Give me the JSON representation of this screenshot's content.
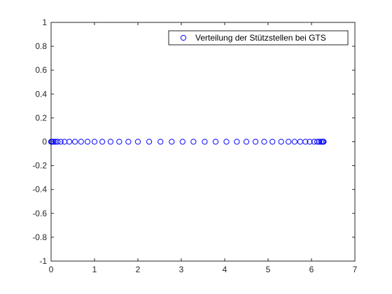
{
  "chart_data": {
    "type": "scatter",
    "title": "",
    "xlabel": "",
    "ylabel": "",
    "xlim": [
      0,
      7
    ],
    "ylim": [
      -1,
      1
    ],
    "xticks": [
      0,
      1,
      2,
      3,
      4,
      5,
      6,
      7
    ],
    "yticks": [
      -1,
      -0.8,
      -0.6,
      -0.4,
      -0.2,
      0,
      0.2,
      0.4,
      0.6,
      0.8,
      1
    ],
    "xtick_labels": [
      "0",
      "1",
      "2",
      "3",
      "4",
      "5",
      "6",
      "7"
    ],
    "ytick_labels": [
      "-1",
      "-0.8",
      "-0.6",
      "-0.4",
      "-0.2",
      "0",
      "0.2",
      "0.4",
      "0.6",
      "0.8",
      "1"
    ],
    "grid": false,
    "legend_position": "top-right",
    "marker": "circle-open",
    "series": [
      {
        "name": "Verteilung der Stützstellen bei GTS",
        "color": "#0000ff",
        "x": [
          0.0,
          0.01,
          0.03,
          0.06,
          0.1,
          0.15,
          0.22,
          0.31,
          0.42,
          0.55,
          0.69,
          0.84,
          1.0,
          1.18,
          1.37,
          1.57,
          1.78,
          2.0,
          2.26,
          2.52,
          2.78,
          3.03,
          3.28,
          3.54,
          3.79,
          4.04,
          4.28,
          4.5,
          4.71,
          4.91,
          5.1,
          5.3,
          5.47,
          5.61,
          5.74,
          5.86,
          5.96,
          6.06,
          6.13,
          6.18,
          6.22,
          6.25,
          6.27,
          6.28
        ],
        "y": [
          0,
          0,
          0,
          0,
          0,
          0,
          0,
          0,
          0,
          0,
          0,
          0,
          0,
          0,
          0,
          0,
          0,
          0,
          0,
          0,
          0,
          0,
          0,
          0,
          0,
          0,
          0,
          0,
          0,
          0,
          0,
          0,
          0,
          0,
          0,
          0,
          0,
          0,
          0,
          0,
          0,
          0,
          0,
          0
        ]
      }
    ]
  }
}
